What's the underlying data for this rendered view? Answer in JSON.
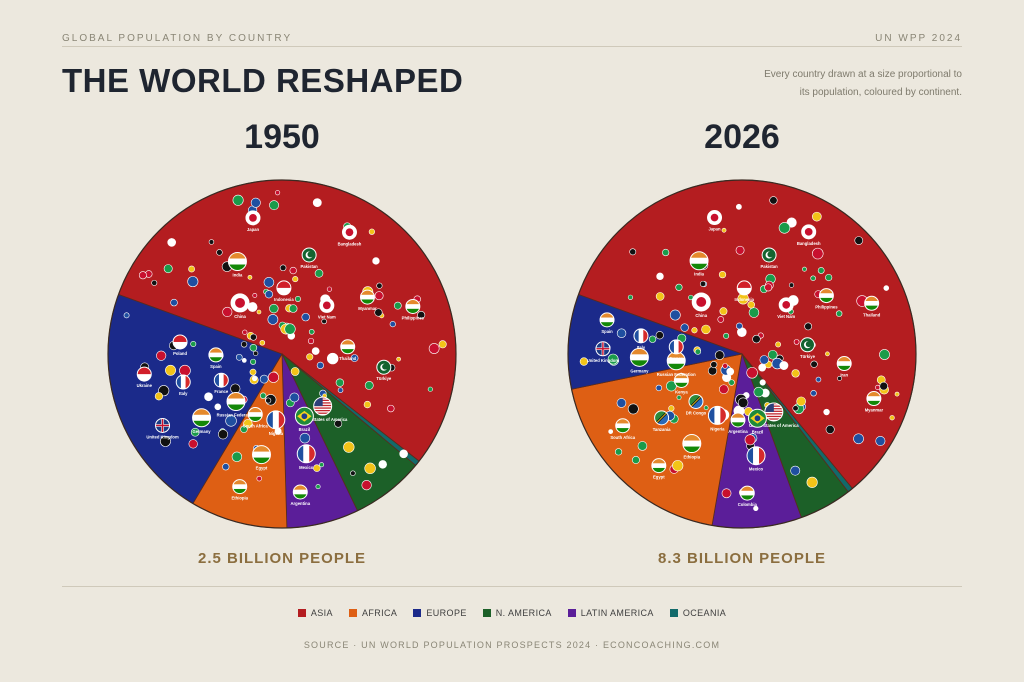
{
  "header": {
    "kicker": "GLOBAL POPULATION BY COUNTRY",
    "source_tag": "UN WPP 2024",
    "title": "THE WORLD RESHAPED",
    "description": "Every country drawn at a size proportional to its population, coloured by continent."
  },
  "colors": {
    "asia": "#b41d20",
    "africa": "#de5f14",
    "europe": "#1b2a8a",
    "n_america": "#1c6028",
    "latin_america": "#5b1e99",
    "oceania": "#126a6a"
  },
  "legend": [
    {
      "label": "ASIA",
      "key": "asia"
    },
    {
      "label": "AFRICA",
      "key": "africa"
    },
    {
      "label": "EUROPE",
      "key": "europe"
    },
    {
      "label": "N. AMERICA",
      "key": "n_america"
    },
    {
      "label": "LATIN AMERICA",
      "key": "latin_america"
    },
    {
      "label": "OCEANIA",
      "key": "oceania"
    }
  ],
  "chart_data": [
    {
      "type": "pie",
      "title": "1950",
      "total_label": "2.5 BILLION PEOPLE",
      "categories": [
        "ASIA",
        "AFRICA",
        "EUROPE",
        "N. AMERICA",
        "LATIN AMERICA",
        "OCEANIA"
      ],
      "values": [
        55.0,
        9.0,
        22.0,
        6.8,
        6.7,
        0.5
      ],
      "country_labels": [
        {
          "name": "China",
          "region": "asia",
          "flag": "circle-red"
        },
        {
          "name": "India",
          "region": "asia",
          "flag": "tricolor-h"
        },
        {
          "name": "Japan",
          "region": "asia",
          "flag": "circle-red"
        },
        {
          "name": "Indonesia",
          "region": "asia",
          "flag": "bicolor-h"
        },
        {
          "name": "Pakistan",
          "region": "asia",
          "flag": "crescent"
        },
        {
          "name": "Bangladesh",
          "region": "asia",
          "flag": "circle-red"
        },
        {
          "name": "Viet Nam",
          "region": "asia",
          "flag": "circle-red"
        },
        {
          "name": "Myanmar",
          "region": "asia",
          "flag": "tricolor-h"
        },
        {
          "name": "Philippines",
          "region": "asia",
          "flag": "tricolor-h"
        },
        {
          "name": "Thailand",
          "region": "asia",
          "flag": "tricolor-h"
        },
        {
          "name": "Türkiye",
          "region": "asia",
          "flag": "crescent"
        },
        {
          "name": "Russian Federation",
          "region": "europe",
          "flag": "tricolor-h"
        },
        {
          "name": "Germany",
          "region": "europe",
          "flag": "tricolor-h"
        },
        {
          "name": "United Kingdom",
          "region": "europe",
          "flag": "union"
        },
        {
          "name": "France",
          "region": "europe",
          "flag": "tricolor-v"
        },
        {
          "name": "Italy",
          "region": "europe",
          "flag": "tricolor-v"
        },
        {
          "name": "Ukraine",
          "region": "europe",
          "flag": "bicolor-h"
        },
        {
          "name": "Spain",
          "region": "europe",
          "flag": "tricolor-h"
        },
        {
          "name": "Poland",
          "region": "europe",
          "flag": "bicolor-h"
        },
        {
          "name": "Nigeria",
          "region": "africa",
          "flag": "tricolor-v"
        },
        {
          "name": "Egypt",
          "region": "africa",
          "flag": "tricolor-h"
        },
        {
          "name": "Ethiopia",
          "region": "africa",
          "flag": "tricolor-h"
        },
        {
          "name": "South Africa",
          "region": "africa",
          "flag": "tricolor-h"
        },
        {
          "name": "Brazil",
          "region": "latin_america",
          "flag": "diamond"
        },
        {
          "name": "Mexico",
          "region": "latin_america",
          "flag": "tricolor-v"
        },
        {
          "name": "Argentina",
          "region": "latin_america",
          "flag": "tricolor-h"
        },
        {
          "name": "United States of America",
          "region": "n_america",
          "flag": "stars-stripes"
        }
      ]
    },
    {
      "type": "pie",
      "title": "2026",
      "total_label": "8.3 BILLION PEOPLE",
      "categories": [
        "ASIA",
        "AFRICA",
        "EUROPE",
        "N. AMERICA",
        "LATIN AMERICA",
        "OCEANIA"
      ],
      "values": [
        58.5,
        19.0,
        8.8,
        4.9,
        8.3,
        0.5
      ],
      "country_labels": [
        {
          "name": "China",
          "region": "asia",
          "flag": "circle-red"
        },
        {
          "name": "India",
          "region": "asia",
          "flag": "tricolor-h"
        },
        {
          "name": "Japan",
          "region": "asia",
          "flag": "circle-red"
        },
        {
          "name": "Indonesia",
          "region": "asia",
          "flag": "bicolor-h"
        },
        {
          "name": "Pakistan",
          "region": "asia",
          "flag": "crescent"
        },
        {
          "name": "Bangladesh",
          "region": "asia",
          "flag": "circle-red"
        },
        {
          "name": "Viet Nam",
          "region": "asia",
          "flag": "circle-red"
        },
        {
          "name": "Philippines",
          "region": "asia",
          "flag": "tricolor-h"
        },
        {
          "name": "Thailand",
          "region": "asia",
          "flag": "tricolor-h"
        },
        {
          "name": "Türkiye",
          "region": "asia",
          "flag": "crescent"
        },
        {
          "name": "Iran",
          "region": "asia",
          "flag": "tricolor-h"
        },
        {
          "name": "Myanmar",
          "region": "asia",
          "flag": "tricolor-h"
        },
        {
          "name": "Russian Federation",
          "region": "europe",
          "flag": "tricolor-h"
        },
        {
          "name": "Germany",
          "region": "europe",
          "flag": "tricolor-h"
        },
        {
          "name": "United Kingdom",
          "region": "europe",
          "flag": "union"
        },
        {
          "name": "France",
          "region": "europe",
          "flag": "tricolor-v"
        },
        {
          "name": "Italy",
          "region": "europe",
          "flag": "tricolor-v"
        },
        {
          "name": "Spain",
          "region": "europe",
          "flag": "tricolor-h"
        },
        {
          "name": "Nigeria",
          "region": "africa",
          "flag": "tricolor-v"
        },
        {
          "name": "Ethiopia",
          "region": "africa",
          "flag": "tricolor-h"
        },
        {
          "name": "Egypt",
          "region": "africa",
          "flag": "tricolor-h"
        },
        {
          "name": "DR Congo",
          "region": "africa",
          "flag": "diagonal"
        },
        {
          "name": "Tanzania",
          "region": "africa",
          "flag": "diagonal"
        },
        {
          "name": "South Africa",
          "region": "africa",
          "flag": "tricolor-h"
        },
        {
          "name": "Kenya",
          "region": "africa",
          "flag": "tricolor-h"
        },
        {
          "name": "Brazil",
          "region": "latin_america",
          "flag": "diamond"
        },
        {
          "name": "Mexico",
          "region": "latin_america",
          "flag": "tricolor-v"
        },
        {
          "name": "Colombia",
          "region": "latin_america",
          "flag": "tricolor-h"
        },
        {
          "name": "Argentina",
          "region": "latin_america",
          "flag": "tricolor-h"
        },
        {
          "name": "United States of America",
          "region": "n_america",
          "flag": "stars-stripes"
        }
      ]
    }
  ],
  "footer": {
    "source": "SOURCE · UN WORLD POPULATION PROSPECTS 2024 · ECONCOACHING.COM"
  }
}
